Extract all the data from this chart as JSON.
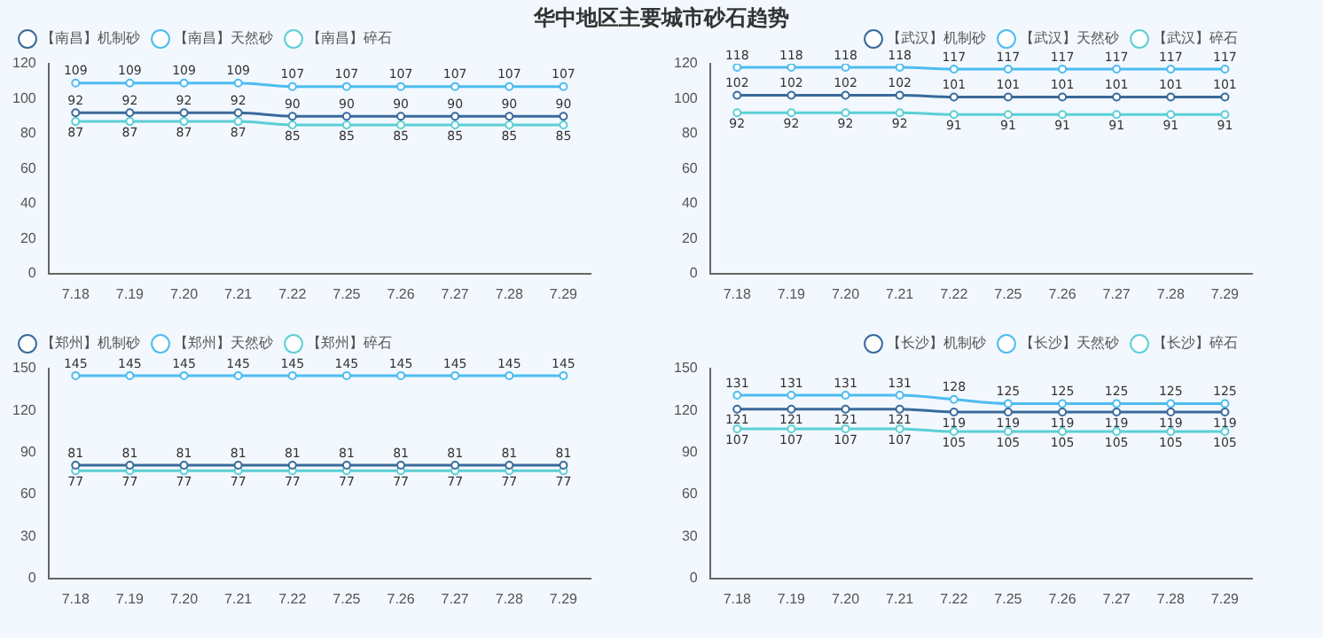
{
  "chart_data": [
    {
      "type": "line",
      "title": "华中地区主要城市砂石趋势",
      "categories": [
        "7.18",
        "7.19",
        "7.20",
        "7.21",
        "7.22",
        "7.25",
        "7.26",
        "7.27",
        "7.28",
        "7.29"
      ],
      "series": [
        {
          "name": "【南昌】机制砂",
          "color": "#3a6a9a",
          "values": [
            92,
            92,
            92,
            92,
            90,
            90,
            90,
            90,
            90,
            90
          ]
        },
        {
          "name": "【南昌】天然砂",
          "color": "#4dbcf0",
          "values": [
            109,
            109,
            109,
            109,
            107,
            107,
            107,
            107,
            107,
            107
          ]
        },
        {
          "name": "【南昌】碎石",
          "color": "#5ccfd6",
          "values": [
            87,
            87,
            87,
            87,
            85,
            85,
            85,
            85,
            85,
            85
          ]
        }
      ],
      "ylim": [
        0,
        120
      ],
      "yticks": [
        0,
        20,
        40,
        60,
        80,
        100,
        120
      ],
      "legend": "top left",
      "marker": "circle",
      "data_labels": true
    },
    {
      "type": "line",
      "categories": [
        "7.18",
        "7.19",
        "7.20",
        "7.21",
        "7.22",
        "7.25",
        "7.26",
        "7.27",
        "7.28",
        "7.29"
      ],
      "series": [
        {
          "name": "【武汉】机制砂",
          "color": "#3a6a9a",
          "values": [
            102,
            102,
            102,
            102,
            101,
            101,
            101,
            101,
            101,
            101
          ]
        },
        {
          "name": "【武汉】天然砂",
          "color": "#4dbcf0",
          "values": [
            118,
            118,
            118,
            118,
            117,
            117,
            117,
            117,
            117,
            117
          ]
        },
        {
          "name": "【武汉】碎石",
          "color": "#5ccfd6",
          "values": [
            92,
            92,
            92,
            92,
            91,
            91,
            91,
            91,
            91,
            91
          ]
        }
      ],
      "ylim": [
        0,
        120
      ],
      "yticks": [
        0,
        20,
        40,
        60,
        80,
        100,
        120
      ],
      "legend": "top right",
      "marker": "circle",
      "data_labels": true
    },
    {
      "type": "line",
      "categories": [
        "7.18",
        "7.19",
        "7.20",
        "7.21",
        "7.22",
        "7.25",
        "7.26",
        "7.27",
        "7.28",
        "7.29"
      ],
      "series": [
        {
          "name": "【郑州】机制砂",
          "color": "#3a6a9a",
          "values": [
            81,
            81,
            81,
            81,
            81,
            81,
            81,
            81,
            81,
            81
          ]
        },
        {
          "name": "【郑州】天然砂",
          "color": "#4dbcf0",
          "values": [
            145,
            145,
            145,
            145,
            145,
            145,
            145,
            145,
            145,
            145
          ]
        },
        {
          "name": "【郑州】碎石",
          "color": "#5ccfd6",
          "values": [
            77,
            77,
            77,
            77,
            77,
            77,
            77,
            77,
            77,
            77
          ]
        }
      ],
      "ylim": [
        0,
        150
      ],
      "yticks": [
        0,
        30,
        60,
        90,
        120,
        150
      ],
      "legend": "top left",
      "marker": "circle",
      "data_labels": true
    },
    {
      "type": "line",
      "categories": [
        "7.18",
        "7.19",
        "7.20",
        "7.21",
        "7.22",
        "7.25",
        "7.26",
        "7.27",
        "7.28",
        "7.29"
      ],
      "series": [
        {
          "name": "【长沙】机制砂",
          "color": "#3a6a9a",
          "values": [
            121,
            121,
            121,
            121,
            119,
            119,
            119,
            119,
            119,
            119
          ]
        },
        {
          "name": "【长沙】天然砂",
          "color": "#4dbcf0",
          "values": [
            131,
            131,
            131,
            131,
            128,
            125,
            125,
            125,
            125,
            125
          ]
        },
        {
          "name": "【长沙】碎石",
          "color": "#5ccfd6",
          "values": [
            107,
            107,
            107,
            107,
            105,
            105,
            105,
            105,
            105,
            105
          ]
        }
      ],
      "ylim": [
        0,
        150
      ],
      "yticks": [
        0,
        30,
        60,
        90,
        120,
        150
      ],
      "legend": "top right",
      "marker": "circle",
      "data_labels": true
    }
  ]
}
